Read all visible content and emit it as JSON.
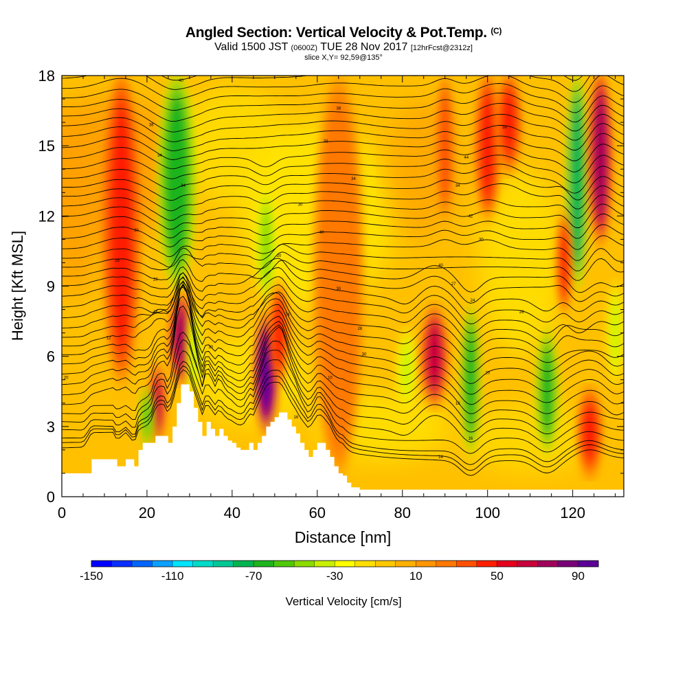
{
  "chart_data": {
    "type": "heatmap",
    "title": "Angled Section: Vertical Velocity & Pot.Temp.",
    "title_mark": "(C)",
    "subtitle_valid": "Valid 1500 JST",
    "subtitle_z": "(0600Z)",
    "subtitle_date": "TUE 28 Nov 2017",
    "subtitle_fcst": "[12hrFcst@2312z]",
    "slice_label": "slice X,Y= 92,59@135°",
    "xlabel": "Distance [nm]",
    "ylabel": "Height [Kft MSL]",
    "xlim": [
      0,
      132
    ],
    "ylim": [
      0,
      18
    ],
    "xticks": [
      "0",
      "20",
      "40",
      "60",
      "80",
      "100",
      "120"
    ],
    "yticks": [
      "0",
      "3",
      "6",
      "9",
      "12",
      "15",
      "18"
    ],
    "terrain": {
      "x": [
        0,
        5,
        7,
        12,
        13,
        15,
        17,
        18,
        19,
        21,
        22,
        24,
        25,
        26,
        27,
        28,
        29,
        30,
        31,
        32,
        33,
        34,
        35,
        36,
        37,
        38,
        39,
        40,
        41,
        42,
        43,
        44,
        45,
        46,
        47,
        48,
        49,
        50,
        51,
        52,
        53,
        54,
        55,
        56,
        57,
        58,
        59,
        60,
        61,
        62,
        63,
        64,
        65,
        66,
        67,
        68,
        70,
        72,
        75,
        132
      ],
      "height": [
        1.0,
        1.0,
        1.6,
        1.6,
        1.3,
        1.6,
        1.3,
        2.0,
        2.3,
        2.3,
        2.6,
        2.6,
        2.3,
        3.0,
        4.0,
        4.8,
        4.8,
        4.5,
        3.8,
        3.2,
        2.6,
        3.2,
        2.9,
        2.6,
        2.9,
        2.6,
        2.4,
        2.3,
        2.1,
        2.0,
        2.0,
        2.3,
        2.0,
        2.3,
        2.6,
        3.0,
        3.2,
        3.4,
        3.6,
        3.6,
        3.3,
        3.0,
        2.7,
        2.3,
        2.0,
        1.7,
        2.0,
        2.3,
        2.3,
        2.0,
        1.7,
        1.3,
        1.0,
        0.9,
        0.6,
        0.4,
        0.3,
        0.3,
        0.3,
        0.3
      ]
    },
    "contour_levels": [
      3,
      3.5,
      4,
      5,
      6,
      7,
      8,
      9,
      10,
      11,
      12,
      13,
      14,
      15,
      16,
      17,
      18,
      19,
      20,
      21,
      22,
      23,
      24,
      25,
      26,
      27,
      28,
      29,
      30,
      31,
      32,
      33,
      34,
      35,
      36,
      37,
      38,
      39,
      40,
      41,
      42,
      43,
      44
    ],
    "vertical_velocity_features": [
      {
        "x": 14,
        "y_bottom": 5,
        "y_top": 18,
        "w_cm_s": 45,
        "width_nm": 3
      },
      {
        "x": 22.5,
        "y_bottom": 2.5,
        "y_top": 5.5,
        "w_cm_s": 60,
        "width_nm": 1.3
      },
      {
        "x": 20,
        "y_bottom": 2.3,
        "y_top": 4.5,
        "w_cm_s": -60,
        "width_nm": 1.2
      },
      {
        "x": 28,
        "y_bottom": 5,
        "y_top": 8.5,
        "w_cm_s": 75,
        "width_nm": 1.8
      },
      {
        "x": 27,
        "y_bottom": 9,
        "y_top": 18,
        "w_cm_s": -70,
        "width_nm": 3
      },
      {
        "x": 31,
        "y_bottom": 4.5,
        "y_top": 8,
        "w_cm_s": -40,
        "width_nm": 1.2
      },
      {
        "x": 48,
        "y_bottom": 3,
        "y_top": 7.5,
        "w_cm_s": 100,
        "width_nm": 1.8
      },
      {
        "x": 48,
        "y_bottom": 8.5,
        "y_top": 13,
        "w_cm_s": -45,
        "width_nm": 1.5
      },
      {
        "x": 51,
        "y_bottom": 5,
        "y_top": 9,
        "w_cm_s": 40,
        "width_nm": 1.5
      },
      {
        "x": 65,
        "y_bottom": 1,
        "y_top": 18,
        "w_cm_s": 25,
        "width_nm": 4
      },
      {
        "x": 81,
        "y_bottom": 4,
        "y_top": 7,
        "w_cm_s": -35,
        "width_nm": 1.5
      },
      {
        "x": 87.5,
        "y_bottom": 4,
        "y_top": 8,
        "w_cm_s": 65,
        "width_nm": 2.2
      },
      {
        "x": 90,
        "y_bottom": 12,
        "y_top": 18,
        "w_cm_s": 35,
        "width_nm": 1.5
      },
      {
        "x": 96,
        "y_bottom": 2,
        "y_top": 8,
        "w_cm_s": -70,
        "width_nm": 1.5
      },
      {
        "x": 100,
        "y_bottom": 12,
        "y_top": 18,
        "w_cm_s": 40,
        "width_nm": 2
      },
      {
        "x": 105,
        "y_bottom": 14,
        "y_top": 18,
        "w_cm_s": 45,
        "width_nm": 2
      },
      {
        "x": 114,
        "y_bottom": 2,
        "y_top": 7,
        "w_cm_s": -65,
        "width_nm": 1.8
      },
      {
        "x": 121,
        "y_bottom": 9,
        "y_top": 18,
        "w_cm_s": -75,
        "width_nm": 1.8
      },
      {
        "x": 118,
        "y_bottom": 8,
        "y_top": 12,
        "w_cm_s": 40,
        "width_nm": 1.2
      },
      {
        "x": 124,
        "y_bottom": 1,
        "y_top": 4.5,
        "w_cm_s": 40,
        "width_nm": 2
      },
      {
        "x": 126.5,
        "y_bottom": 11,
        "y_top": 18,
        "w_cm_s": 70,
        "width_nm": 1.8
      },
      {
        "x": 130,
        "y_bottom": 5,
        "y_top": 9,
        "w_cm_s": -35,
        "width_nm": 1.2
      }
    ],
    "contour_labels": [
      {
        "text": "20",
        "x": 1,
        "y": 5.1
      },
      {
        "text": "12",
        "x": 11,
        "y": 6.8
      },
      {
        "text": "24",
        "x": 22,
        "y": 7.9
      },
      {
        "text": "28",
        "x": 22,
        "y": 9.3
      },
      {
        "text": "28",
        "x": 13,
        "y": 10.1
      },
      {
        "text": "30",
        "x": 17.5,
        "y": 11.4
      },
      {
        "text": "34",
        "x": 28.5,
        "y": 13.3
      },
      {
        "text": "34",
        "x": 23,
        "y": 14.6
      },
      {
        "text": "38",
        "x": 21,
        "y": 15.9
      },
      {
        "text": "40",
        "x": 28,
        "y": 17.8
      },
      {
        "text": "38",
        "x": 65,
        "y": 16.6
      },
      {
        "text": "38",
        "x": 62,
        "y": 15.2
      },
      {
        "text": "34",
        "x": 68.5,
        "y": 13.6
      },
      {
        "text": "30",
        "x": 56,
        "y": 12.5
      },
      {
        "text": "40",
        "x": 61,
        "y": 11.3
      },
      {
        "text": "20",
        "x": 51,
        "y": 10.3
      },
      {
        "text": "24",
        "x": 53,
        "y": 7.8
      },
      {
        "text": "30",
        "x": 65,
        "y": 8.9
      },
      {
        "text": "28",
        "x": 70,
        "y": 7.2
      },
      {
        "text": "30",
        "x": 71,
        "y": 6.1
      },
      {
        "text": "10",
        "x": 63,
        "y": 5.1
      },
      {
        "text": "16",
        "x": 55,
        "y": 3.4
      },
      {
        "text": "30",
        "x": 35,
        "y": 6.4
      },
      {
        "text": "40",
        "x": 89,
        "y": 9.9
      },
      {
        "text": "44",
        "x": 95,
        "y": 14.5
      },
      {
        "text": "34",
        "x": 93,
        "y": 13.3
      },
      {
        "text": "42",
        "x": 96,
        "y": 12.0
      },
      {
        "text": "30",
        "x": 98.5,
        "y": 11.0
      },
      {
        "text": "27",
        "x": 92,
        "y": 9.1
      },
      {
        "text": "24",
        "x": 96.5,
        "y": 8.4
      },
      {
        "text": "28",
        "x": 108,
        "y": 7.9
      },
      {
        "text": "20",
        "x": 100,
        "y": 5.3
      },
      {
        "text": "18",
        "x": 93,
        "y": 4.0
      },
      {
        "text": "16",
        "x": 96,
        "y": 2.5
      },
      {
        "text": "14",
        "x": 89,
        "y": 1.7
      },
      {
        "text": "38",
        "x": 104,
        "y": 15.8
      }
    ]
  },
  "colorbar": {
    "label": "Vertical Velocity [cm/s]",
    "colors": [
      "#0000ff",
      "#0a2eff",
      "#0066ff",
      "#0aa0ff",
      "#00e4ff",
      "#00dcc8",
      "#00c896",
      "#00b450",
      "#1eb41e",
      "#50c80a",
      "#8cdc00",
      "#c8f000",
      "#ffff00",
      "#ffdf00",
      "#ffc800",
      "#ffb000",
      "#ff9600",
      "#ff7800",
      "#ff5000",
      "#ff1e00",
      "#e6001e",
      "#c8003c",
      "#a0005a",
      "#780078",
      "#5a0096"
    ],
    "ticks": [
      "-150",
      "-110",
      "-70",
      "-30",
      "10",
      "50",
      "90"
    ]
  }
}
